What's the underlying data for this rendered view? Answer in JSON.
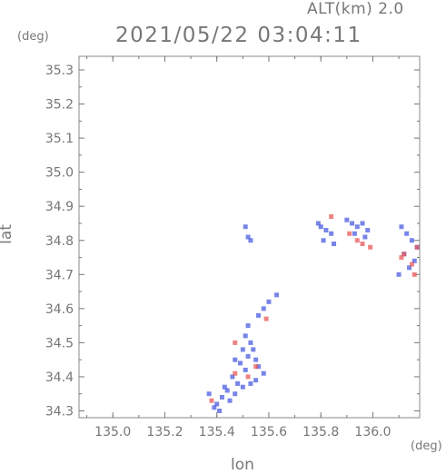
{
  "header": {
    "altitude_label": "ALT(km) 2.0",
    "timestamp": "2021/05/22 03:04:11"
  },
  "chart_data": {
    "type": "scatter",
    "title": "2021/05/22 03:04:11",
    "subtitle": "ALT(km) 2.0",
    "xlabel": "lon",
    "ylabel": "lat",
    "xunit": "(deg)",
    "yunit": "(deg)",
    "xlim": [
      134.87,
      136.18
    ],
    "ylim": [
      34.28,
      35.34
    ],
    "xticks": [
      135.0,
      135.2,
      135.4,
      135.6,
      135.8,
      136.0
    ],
    "xtick_labels": [
      "135.0",
      "135.2",
      "135.4",
      "135.6",
      "135.8",
      "136.0"
    ],
    "yticks": [
      34.3,
      34.4,
      34.5,
      34.6,
      34.7,
      34.8,
      34.9,
      35.0,
      35.1,
      35.2,
      35.3
    ],
    "ytick_labels": [
      "34.3",
      "34.4",
      "34.5",
      "34.6",
      "34.7",
      "34.8",
      "34.9",
      "35.0",
      "35.1",
      "35.2",
      "35.3"
    ],
    "grid": false,
    "colors": {
      "approaching": "#4a5ce0",
      "receding": "#e85a5a",
      "axis": "#777777"
    },
    "series": [
      {
        "color": "#4a5ce0",
        "points": [
          [
            135.52,
            34.81
          ],
          [
            135.53,
            34.8
          ],
          [
            135.51,
            34.84
          ],
          [
            135.79,
            34.85
          ],
          [
            135.8,
            34.84
          ],
          [
            135.82,
            34.83
          ],
          [
            135.84,
            34.82
          ],
          [
            135.81,
            34.8
          ],
          [
            135.85,
            34.79
          ],
          [
            135.9,
            34.86
          ],
          [
            135.92,
            34.85
          ],
          [
            135.94,
            34.84
          ],
          [
            135.96,
            34.85
          ],
          [
            135.98,
            34.83
          ],
          [
            135.93,
            34.82
          ],
          [
            135.97,
            34.81
          ],
          [
            136.11,
            34.84
          ],
          [
            136.13,
            34.82
          ],
          [
            136.15,
            34.8
          ],
          [
            136.17,
            34.78
          ],
          [
            136.12,
            34.76
          ],
          [
            136.16,
            34.74
          ],
          [
            136.14,
            34.72
          ],
          [
            136.1,
            34.7
          ],
          [
            135.63,
            34.64
          ],
          [
            135.6,
            34.62
          ],
          [
            135.58,
            34.6
          ],
          [
            135.56,
            34.58
          ],
          [
            135.52,
            34.55
          ],
          [
            135.51,
            34.52
          ],
          [
            135.53,
            34.5
          ],
          [
            135.5,
            34.48
          ],
          [
            135.52,
            34.46
          ],
          [
            135.54,
            34.48
          ],
          [
            135.55,
            34.45
          ],
          [
            135.49,
            34.44
          ],
          [
            135.56,
            34.43
          ],
          [
            135.47,
            34.45
          ],
          [
            135.51,
            34.42
          ],
          [
            135.46,
            34.4
          ],
          [
            135.48,
            34.38
          ],
          [
            135.44,
            34.36
          ],
          [
            135.42,
            34.34
          ],
          [
            135.4,
            34.32
          ],
          [
            135.41,
            34.3
          ],
          [
            135.39,
            34.31
          ],
          [
            135.45,
            34.33
          ],
          [
            135.47,
            34.35
          ],
          [
            135.5,
            34.37
          ],
          [
            135.53,
            34.38
          ],
          [
            135.55,
            34.39
          ],
          [
            135.43,
            34.37
          ],
          [
            135.37,
            34.35
          ],
          [
            135.58,
            34.41
          ]
        ]
      },
      {
        "color": "#e85a5a",
        "points": [
          [
            135.84,
            34.87
          ],
          [
            135.91,
            34.82
          ],
          [
            135.96,
            34.79
          ],
          [
            135.99,
            34.78
          ],
          [
            135.94,
            34.8
          ],
          [
            136.12,
            34.76
          ],
          [
            136.15,
            34.73
          ],
          [
            136.16,
            34.7
          ],
          [
            136.11,
            34.75
          ],
          [
            136.17,
            34.78
          ],
          [
            135.59,
            34.57
          ],
          [
            135.47,
            34.5
          ],
          [
            135.55,
            34.43
          ],
          [
            135.47,
            34.41
          ],
          [
            135.38,
            34.33
          ],
          [
            135.52,
            34.4
          ]
        ]
      }
    ]
  }
}
